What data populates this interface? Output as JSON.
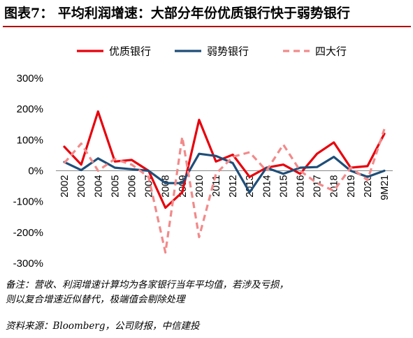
{
  "figure": {
    "title": "图表7：  平均利润增速：大部分年份优质银行快于弱势银行",
    "note_line1": "备注：营收、利润增速计算均为各家银行当年平均值，若涉及亏损，",
    "note_line2": "则以复合增速近似替代，极端值会剔除处理",
    "source": "资料来源：Bloomberg，公司财报，中信建投"
  },
  "chart_data": {
    "type": "line",
    "categories": [
      "2002",
      "2003",
      "2004",
      "2005",
      "2006",
      "2007",
      "2008",
      "2009",
      "2010",
      "2011",
      "2012",
      "2013",
      "2014",
      "2015",
      "2016",
      "2017",
      "2018",
      "2019",
      "2020",
      "9M21"
    ],
    "y_ticks": [
      "300%",
      "200%",
      "100%",
      "0%",
      "-100%",
      "-200%",
      "-300%"
    ],
    "ylim": [
      -300,
      300
    ],
    "grid": false,
    "legend_position": "top",
    "series": [
      {
        "name": "优质银行",
        "color": "#e8000b",
        "dash": "solid",
        "values": [
          78,
          20,
          192,
          30,
          35,
          0,
          -120,
          -70,
          165,
          30,
          52,
          -20,
          10,
          20,
          -10,
          55,
          92,
          10,
          15,
          120
        ]
      },
      {
        "name": "弱势银行",
        "color": "#1f4e79",
        "dash": "solid",
        "values": [
          28,
          2,
          40,
          10,
          5,
          0,
          -40,
          -40,
          55,
          48,
          25,
          -70,
          10,
          -10,
          10,
          12,
          45,
          0,
          -20,
          0
        ]
      },
      {
        "name": "四大行",
        "color": "#f28a8a",
        "dash": "dashed",
        "values": [
          25,
          88,
          0,
          38,
          20,
          -20,
          -265,
          110,
          -215,
          -10,
          45,
          60,
          0,
          85,
          0,
          -40,
          -65,
          10,
          -30,
          135
        ]
      }
    ]
  }
}
